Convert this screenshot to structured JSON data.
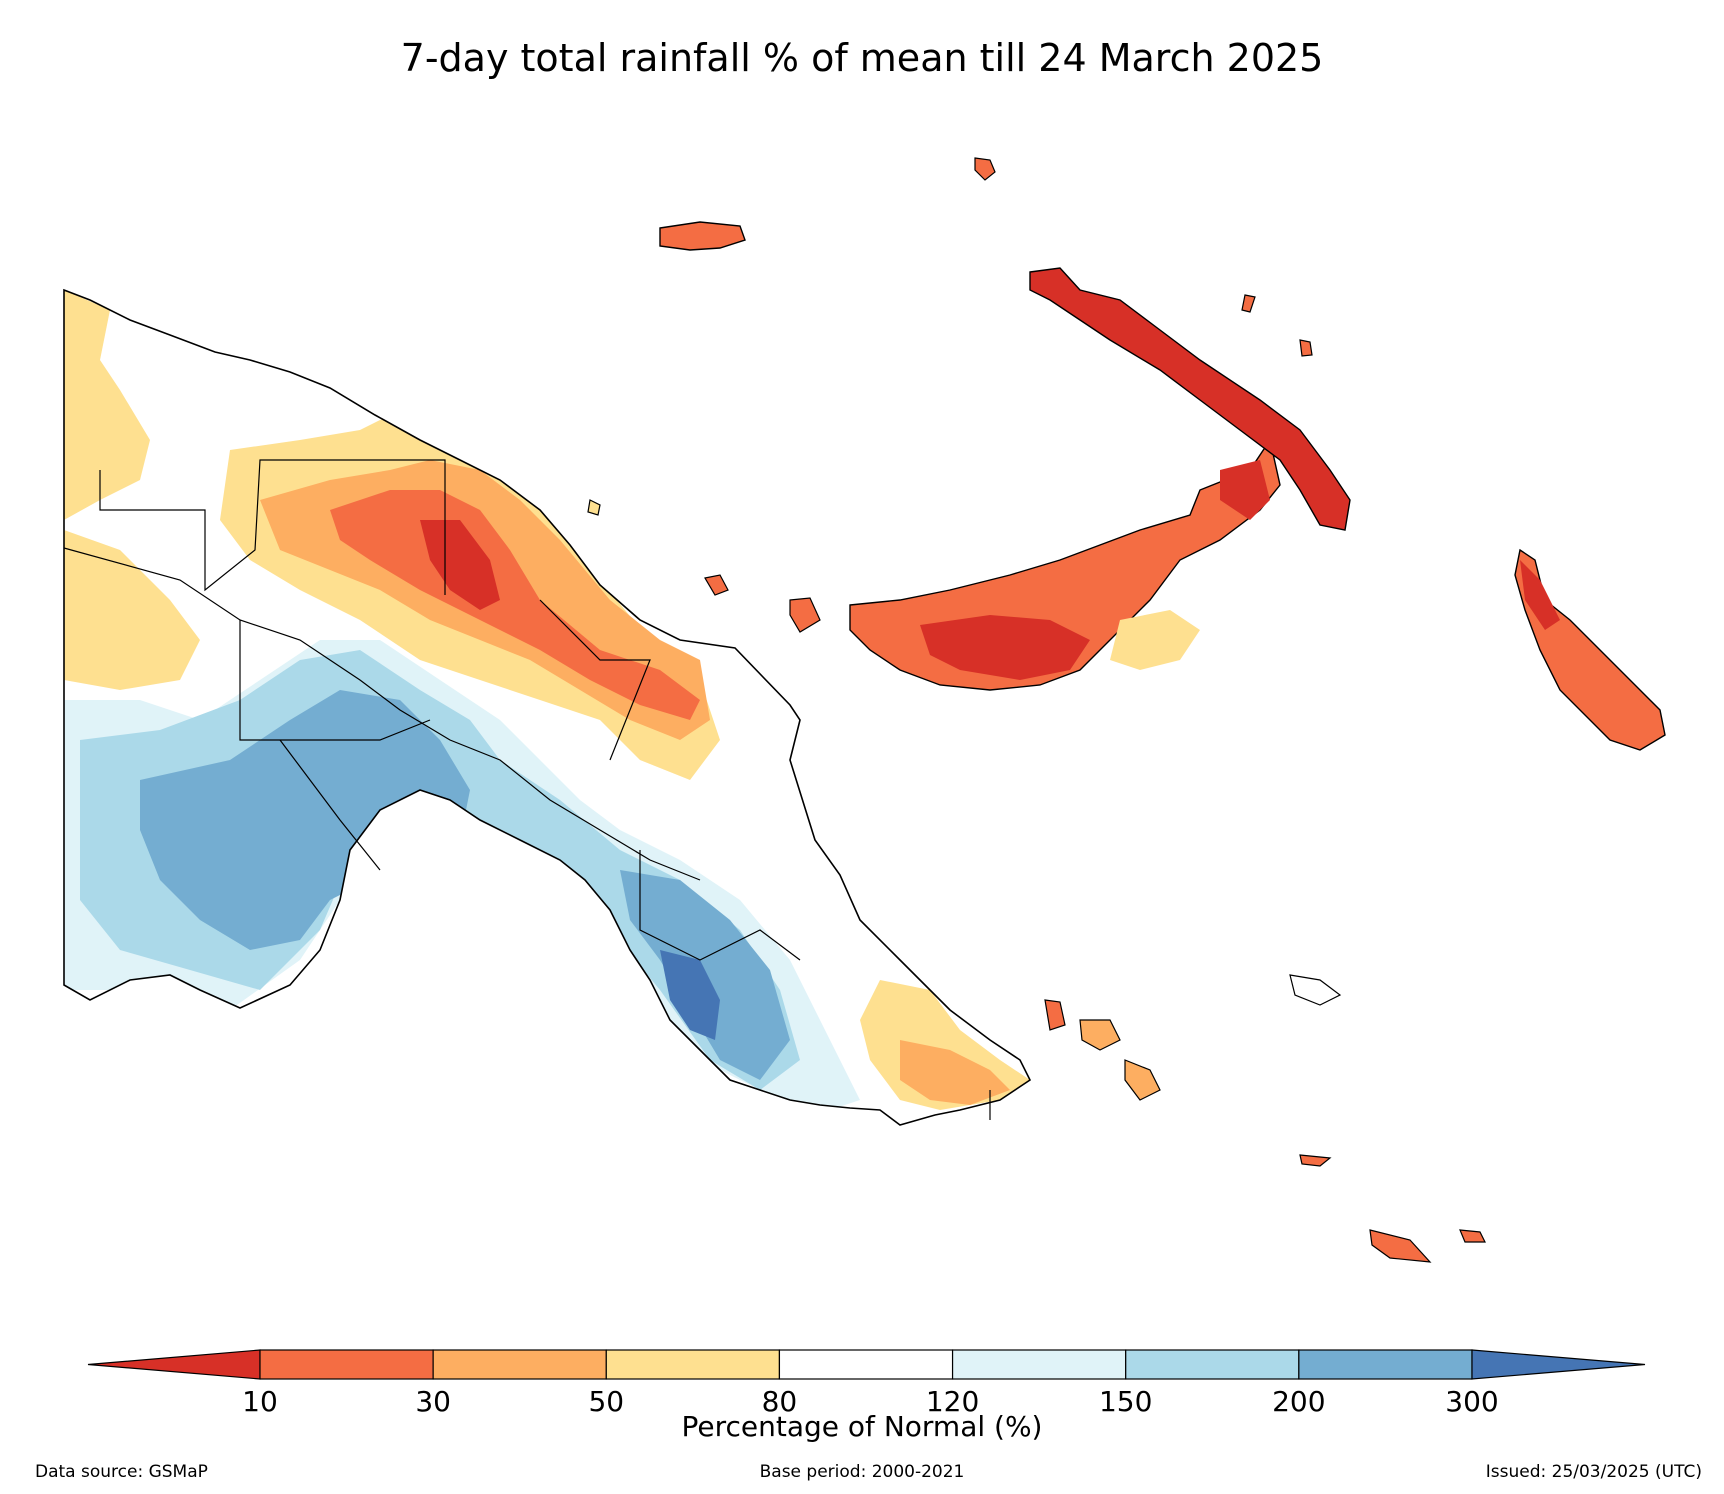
{
  "title": "7-day total rainfall % of mean till 24 March 2025",
  "colorbar": {
    "label": "Percentage of Normal (%)",
    "ticks": [
      "10",
      "30",
      "50",
      "80",
      "120",
      "150",
      "200",
      "300"
    ],
    "bins": [
      {
        "range": "<10",
        "color": "#d73027"
      },
      {
        "range": "10-30",
        "color": "#f46d43"
      },
      {
        "range": "30-50",
        "color": "#fdae61"
      },
      {
        "range": "50-80",
        "color": "#fee090"
      },
      {
        "range": "80-120",
        "color": "#ffffff"
      },
      {
        "range": "120-150",
        "color": "#e0f3f8"
      },
      {
        "range": "150-200",
        "color": "#abd9e9"
      },
      {
        "range": "200-300",
        "color": "#74add1"
      },
      {
        "range": ">300",
        "color": "#4575b4"
      }
    ]
  },
  "footer": {
    "source": "Data source: GSMaP",
    "base_period": "Base period: 2000-2021",
    "issued": "Issued: 25/03/2025 (UTC)"
  }
}
